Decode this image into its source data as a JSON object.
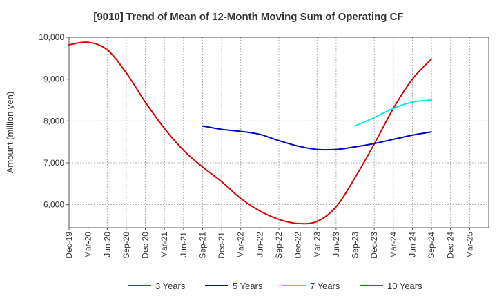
{
  "chart_data": {
    "type": "line",
    "title": "[9010]  Trend of Mean of 12-Month Moving Sum of Operating CF",
    "xlabel": "",
    "ylabel": "Amount (million yen)",
    "ylim": [
      5450,
      10000
    ],
    "yticks": [
      6000,
      7000,
      8000,
      9000,
      10000
    ],
    "ytick_labels": [
      "6,000",
      "7,000",
      "8,000",
      "9,000",
      "10,000"
    ],
    "xticks": [
      "Dec-19",
      "Mar-20",
      "Jun-20",
      "Sep-20",
      "Dec-20",
      "Mar-21",
      "Jun-21",
      "Sep-21",
      "Dec-21",
      "Mar-22",
      "Jun-22",
      "Sep-22",
      "Dec-22",
      "Mar-23",
      "Jun-23",
      "Sep-23",
      "Dec-23",
      "Mar-24",
      "Jun-24",
      "Sep-24",
      "Dec-24",
      "Mar-25"
    ],
    "grid": true,
    "legend_position": "bottom",
    "series": [
      {
        "name": "3 Years",
        "color": "#dd0000",
        "x": [
          "Dec-19",
          "Mar-20",
          "Jun-20",
          "Sep-20",
          "Dec-20",
          "Mar-21",
          "Jun-21",
          "Sep-21",
          "Dec-21",
          "Mar-22",
          "Jun-22",
          "Sep-22",
          "Dec-22",
          "Mar-23",
          "Jun-23",
          "Sep-23",
          "Dec-23",
          "Mar-24",
          "Jun-24",
          "Sep-24"
        ],
        "values": [
          9820,
          9880,
          9700,
          9150,
          8450,
          7820,
          7300,
          6900,
          6550,
          6150,
          5850,
          5650,
          5550,
          5600,
          5950,
          6650,
          7450,
          8300,
          9000,
          9480
        ]
      },
      {
        "name": "5 Years",
        "color": "#0000cc",
        "x": [
          "Sep-21",
          "Dec-21",
          "Mar-22",
          "Jun-22",
          "Sep-22",
          "Dec-22",
          "Mar-23",
          "Jun-23",
          "Sep-23",
          "Dec-23",
          "Mar-24",
          "Jun-24",
          "Sep-24"
        ],
        "values": [
          7880,
          7800,
          7750,
          7680,
          7530,
          7400,
          7320,
          7320,
          7380,
          7460,
          7560,
          7660,
          7740
        ]
      },
      {
        "name": "7 Years",
        "color": "#00eeee",
        "x": [
          "Sep-23",
          "Dec-23",
          "Mar-24",
          "Jun-24",
          "Sep-24"
        ],
        "values": [
          7880,
          8080,
          8300,
          8450,
          8500
        ]
      },
      {
        "name": "10 Years",
        "color": "#008800",
        "x": [],
        "values": []
      }
    ]
  }
}
